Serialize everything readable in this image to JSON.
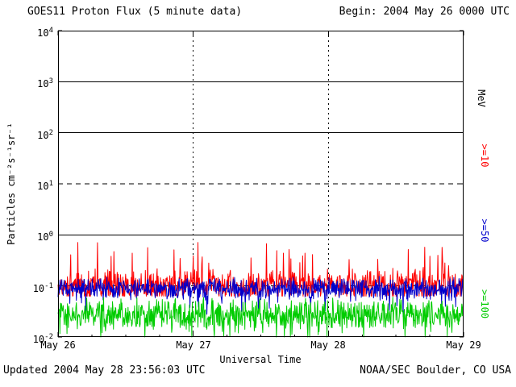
{
  "header": {
    "title": "GOES11 Proton Flux (5 minute data)",
    "begin_label": "Begin: 2004 May 26 0000 UTC"
  },
  "axes": {
    "y_base": "10",
    "y_ticks": [
      {
        "exp": "4"
      },
      {
        "exp": "3"
      },
      {
        "exp": "2"
      },
      {
        "exp": "1"
      },
      {
        "exp": "0"
      },
      {
        "exp": "-1"
      },
      {
        "exp": "-2"
      }
    ],
    "x_ticks": [
      "May 26",
      "May 27",
      "May 28",
      "May 29"
    ],
    "x_title": "Universal Time",
    "y_title": "Particles cm⁻²s⁻¹sr⁻¹"
  },
  "legend": {
    "unit": "MeV",
    "items": [
      {
        "label": ">=10",
        "color": "#ff0000"
      },
      {
        "label": ">=50",
        "color": "#0000cc"
      },
      {
        "label": ">=100",
        "color": "#00cc00"
      }
    ]
  },
  "footer": {
    "updated": "Updated 2004 May 28 23:56:03 UTC",
    "source": "NOAA/SEC Boulder, CO USA"
  },
  "chart_data": {
    "type": "line",
    "title": "GOES11 Proton Flux (5 minute data)",
    "xlabel": "Universal Time",
    "ylabel": "Particles cm⁻²s⁻¹sr⁻¹",
    "x_range": [
      "2004 May 26 0000 UTC",
      "2004 May 29 0000 UTC"
    ],
    "y_scale": "log",
    "y_range_exp": [
      -2,
      4
    ],
    "y_gridlines": [
      {
        "exp": 3,
        "style": "solid"
      },
      {
        "exp": 2,
        "style": "solid"
      },
      {
        "exp": 1,
        "style": "dashed"
      },
      {
        "exp": 0,
        "style": "solid"
      },
      {
        "exp": -1,
        "style": "dashed"
      }
    ],
    "x_gridline_days": [
      1,
      2
    ],
    "points_per_series": 864,
    "seed": 20040526,
    "series": [
      {
        "name": ">=10 MeV",
        "color": "#ff0000",
        "approx_log10_mean": -1.0,
        "noise_amp": 0.18,
        "spike_prob": 0.06,
        "spike_range": [
          0.2,
          0.7
        ],
        "spike_dir": 1,
        "clamp_log10": [
          -1.2,
          -0.15
        ]
      },
      {
        "name": ">=50 MeV",
        "color": "#0000cc",
        "approx_log10_mean": -1.05,
        "noise_amp": 0.12,
        "spike_prob": 0.05,
        "spike_range": [
          0.1,
          0.45
        ],
        "spike_dir": -1,
        "clamp_log10": [
          -1.6,
          -0.7
        ]
      },
      {
        "name": ">=100 MeV",
        "color": "#00cc00",
        "approx_log10_mean": -1.55,
        "noise_amp": 0.17,
        "spike_prob": 0.08,
        "spike_range": [
          0.1,
          0.4
        ],
        "spike_dir": -1,
        "clamp_log10": [
          -2.0,
          -1.15
        ]
      }
    ]
  }
}
